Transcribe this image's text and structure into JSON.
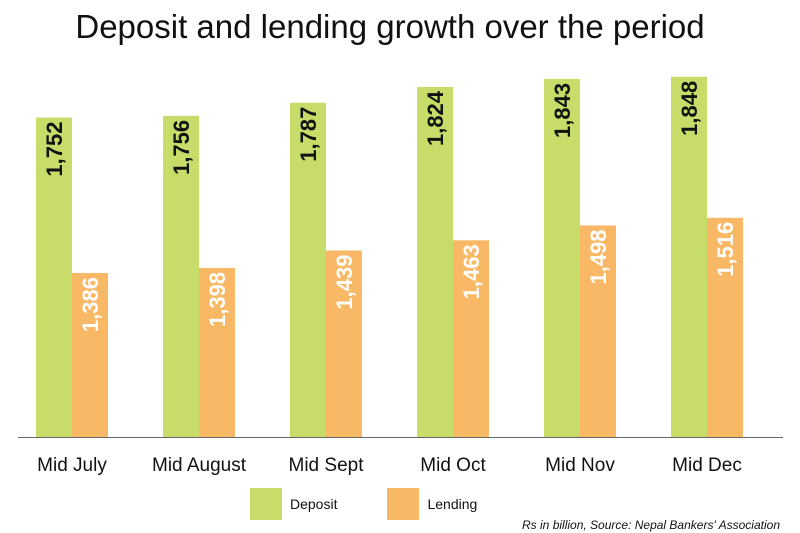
{
  "chart_data": {
    "type": "bar",
    "title": "Deposit and lending growth over the period",
    "categories": [
      "Mid July",
      "Mid August",
      "Mid Sept",
      "Mid Oct",
      "Mid Nov",
      "Mid Dec"
    ],
    "series": [
      {
        "name": "Deposit",
        "values": [
          1752,
          1756,
          1787,
          1824,
          1843,
          1848
        ],
        "labels": [
          "1,752",
          "1,756",
          "1,787",
          "1,824",
          "1,843",
          "1,848"
        ],
        "color": "#c8dc6a",
        "label_color": "#111111"
      },
      {
        "name": "Lending",
        "values": [
          1386,
          1398,
          1439,
          1463,
          1498,
          1516
        ],
        "labels": [
          "1,386",
          "1,398",
          "1,439",
          "1,463",
          "1,498",
          "1,516"
        ],
        "color": "#f9b865",
        "label_color": "#ffffff"
      }
    ],
    "xlabel": "",
    "ylabel": "",
    "ylim": [
      0,
      1900
    ],
    "legend": "bottom",
    "note": "Rs in billion, Source: Nepal Bankers' Association"
  }
}
